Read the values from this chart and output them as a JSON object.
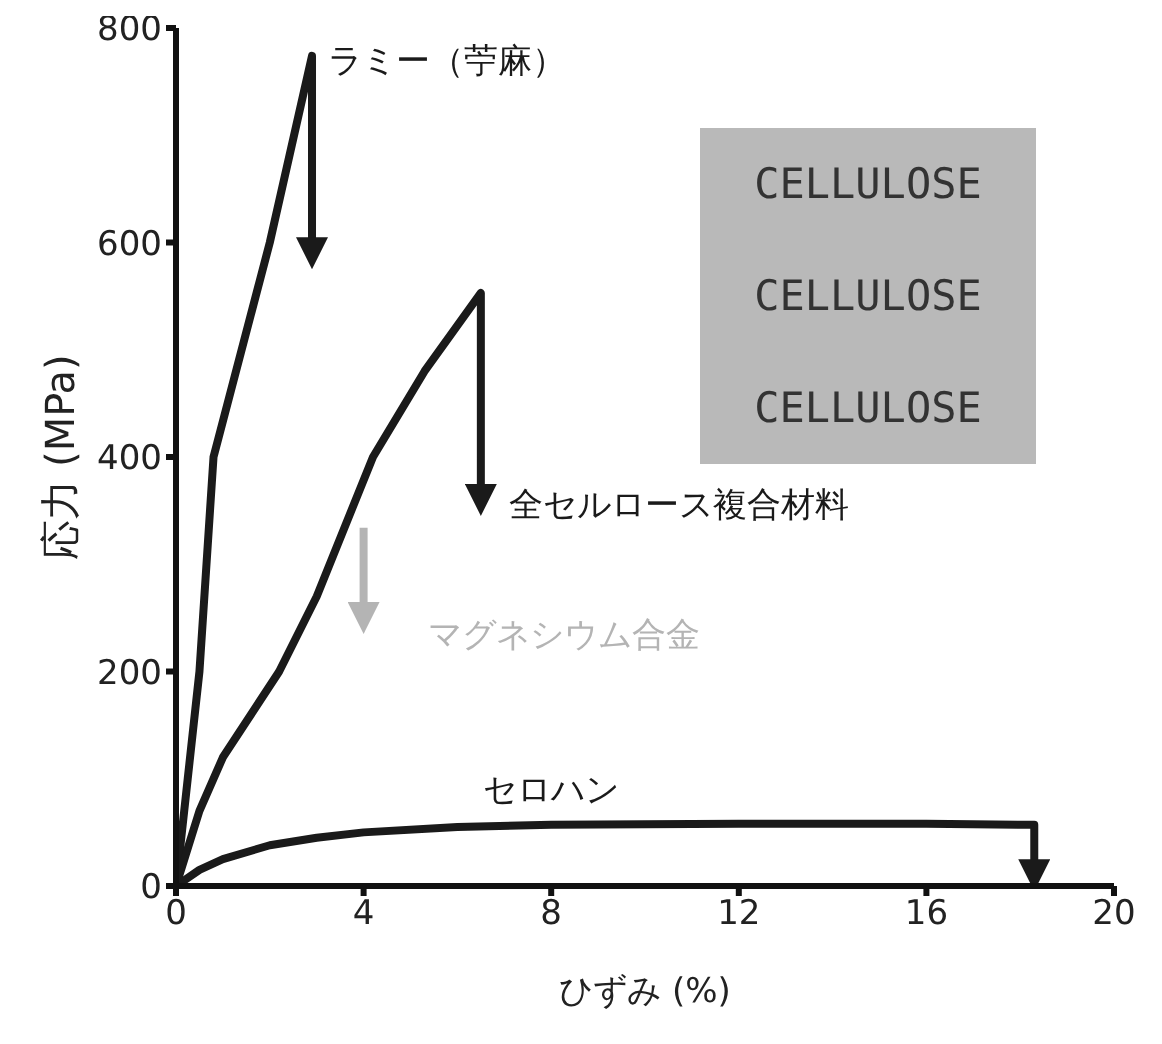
{
  "chart_data": {
    "type": "line",
    "xlabel": "ひずみ (%)",
    "ylabel": "応力 (MPa)",
    "xlim": [
      0,
      20
    ],
    "xticks": [
      0,
      4,
      8,
      12,
      16,
      20
    ],
    "ylim": [
      0,
      800
    ],
    "yticks": [
      0,
      200,
      400,
      600,
      800
    ],
    "marker": "none",
    "line_style": "solid",
    "grid": false,
    "annotations": [
      "CELLULOSE",
      "CELLULOSE",
      "CELLULOSE"
    ],
    "series": [
      {
        "name": "ラミー（苧麻）",
        "color": "#1a1a1a",
        "x": [
          0,
          0.25,
          0.5,
          0.8,
          2.0,
          2.9,
          2.9
        ],
        "values": [
          0,
          100,
          200,
          400,
          600,
          774,
          590
        ]
      },
      {
        "name": "全セルロース複合材料",
        "color": "#1a1a1a",
        "x": [
          0,
          0.5,
          1.0,
          2.2,
          3.0,
          4.2,
          5.3,
          6.5,
          6.5
        ],
        "values": [
          0,
          70,
          120,
          200,
          270,
          400,
          480,
          553,
          360
        ]
      },
      {
        "name": "マグネシウム合金",
        "color": "#b4b4b4",
        "x": [
          4,
          4
        ],
        "values": [
          334,
          250
        ]
      },
      {
        "name": "セロハン",
        "color": "#1a1a1a",
        "x": [
          0,
          0.5,
          1,
          2,
          3,
          4,
          6,
          8,
          12,
          16,
          18.3,
          18.3
        ],
        "values": [
          0,
          15,
          25,
          38,
          45,
          50,
          55,
          57,
          58,
          58,
          57,
          10
        ]
      }
    ]
  }
}
